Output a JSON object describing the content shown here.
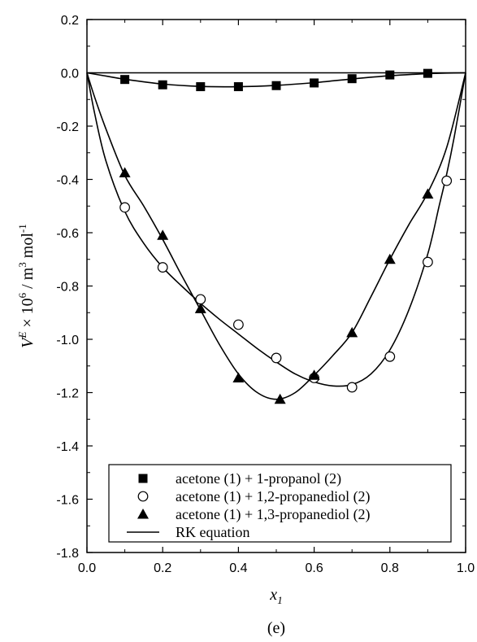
{
  "chart_data": {
    "type": "scatter",
    "xlabel": {
      "base": "x",
      "sub": "1"
    },
    "ylabel": {
      "v": "V",
      "e": "E",
      "times": " × 10",
      "six": "6",
      "unit": " / m",
      "three": "3",
      "mol": " mol",
      "minus1": "-1"
    },
    "xlim": [
      0.0,
      1.0
    ],
    "ylim": [
      -1.8,
      0.2
    ],
    "x_ticks": [
      0.0,
      0.2,
      0.4,
      0.6,
      0.8,
      1.0
    ],
    "x_tick_labels": [
      "0.0",
      "0.2",
      "0.4",
      "0.6",
      "0.8",
      "1.0"
    ],
    "y_ticks": [
      0.2,
      0.0,
      -0.2,
      -0.4,
      -0.6,
      -0.8,
      -1.0,
      -1.2,
      -1.4,
      -1.6,
      -1.8
    ],
    "y_tick_labels": [
      "0.2",
      "0.0",
      "-0.2",
      "-0.4",
      "-0.6",
      "-0.8",
      "-1.0",
      "-1.2",
      "-1.4",
      "-1.6",
      "-1.8"
    ],
    "caption": "(e)",
    "legend_position": "bottom-left",
    "series": [
      {
        "name": "acetone (1) + 1-propanol (2)",
        "marker": "filled-square",
        "x": [
          0.1,
          0.2,
          0.3,
          0.4,
          0.5,
          0.6,
          0.7,
          0.8,
          0.9
        ],
        "y": [
          -0.025,
          -0.045,
          -0.052,
          -0.052,
          -0.048,
          -0.038,
          -0.022,
          -0.008,
          -0.002
        ]
      },
      {
        "name": "acetone (1) + 1,2-propanediol (2)",
        "marker": "open-circle",
        "x": [
          0.1,
          0.2,
          0.3,
          0.4,
          0.5,
          0.6,
          0.7,
          0.8,
          0.9,
          0.95
        ],
        "y": [
          -0.505,
          -0.73,
          -0.85,
          -0.945,
          -1.07,
          -1.145,
          -1.18,
          -1.065,
          -0.71,
          -0.405
        ]
      },
      {
        "name": "acetone (1) + 1,3-propanediol (2)",
        "marker": "filled-triangle",
        "x": [
          0.1,
          0.2,
          0.3,
          0.4,
          0.51,
          0.6,
          0.7,
          0.8,
          0.9
        ],
        "y": [
          -0.375,
          -0.61,
          -0.885,
          -1.145,
          -1.225,
          -1.135,
          -0.975,
          -0.7,
          -0.455
        ]
      }
    ],
    "fit_curves": [
      {
        "x": [
          0.0,
          0.05,
          0.1,
          0.2,
          0.3,
          0.4,
          0.5,
          0.6,
          0.7,
          0.8,
          0.9,
          0.95,
          1.0
        ],
        "y": [
          0.0,
          -0.012,
          -0.024,
          -0.042,
          -0.051,
          -0.052,
          -0.047,
          -0.037,
          -0.023,
          -0.011,
          -0.003,
          -0.001,
          0.0
        ]
      },
      {
        "x": [
          0.0,
          0.02,
          0.05,
          0.1,
          0.15,
          0.2,
          0.25,
          0.3,
          0.35,
          0.4,
          0.45,
          0.5,
          0.55,
          0.6,
          0.65,
          0.7,
          0.75,
          0.8,
          0.85,
          0.9,
          0.93,
          0.95,
          0.97,
          1.0
        ],
        "y": [
          0.0,
          -0.15,
          -0.33,
          -0.52,
          -0.64,
          -0.73,
          -0.8,
          -0.865,
          -0.925,
          -0.98,
          -1.035,
          -1.085,
          -1.13,
          -1.16,
          -1.175,
          -1.17,
          -1.13,
          -1.04,
          -0.89,
          -0.68,
          -0.5,
          -0.38,
          -0.24,
          0.0
        ]
      },
      {
        "x": [
          0.0,
          0.02,
          0.05,
          0.1,
          0.15,
          0.2,
          0.25,
          0.3,
          0.35,
          0.4,
          0.45,
          0.5,
          0.55,
          0.6,
          0.65,
          0.7,
          0.75,
          0.8,
          0.85,
          0.9,
          0.95,
          1.0
        ],
        "y": [
          0.0,
          -0.09,
          -0.21,
          -0.385,
          -0.5,
          -0.625,
          -0.76,
          -0.89,
          -1.02,
          -1.13,
          -1.2,
          -1.225,
          -1.2,
          -1.135,
          -1.06,
          -0.975,
          -0.84,
          -0.7,
          -0.57,
          -0.45,
          -0.28,
          0.0
        ]
      }
    ],
    "legend_entries": [
      {
        "label": "acetone (1) + 1-propanol (2)",
        "marker": "filled-square"
      },
      {
        "label": "acetone (1) + 1,2-propanediol (2)",
        "marker": "open-circle"
      },
      {
        "label": "acetone (1) + 1,3-propanediol (2)",
        "marker": "filled-triangle"
      },
      {
        "label": "RK equation",
        "marker": "line"
      }
    ]
  }
}
